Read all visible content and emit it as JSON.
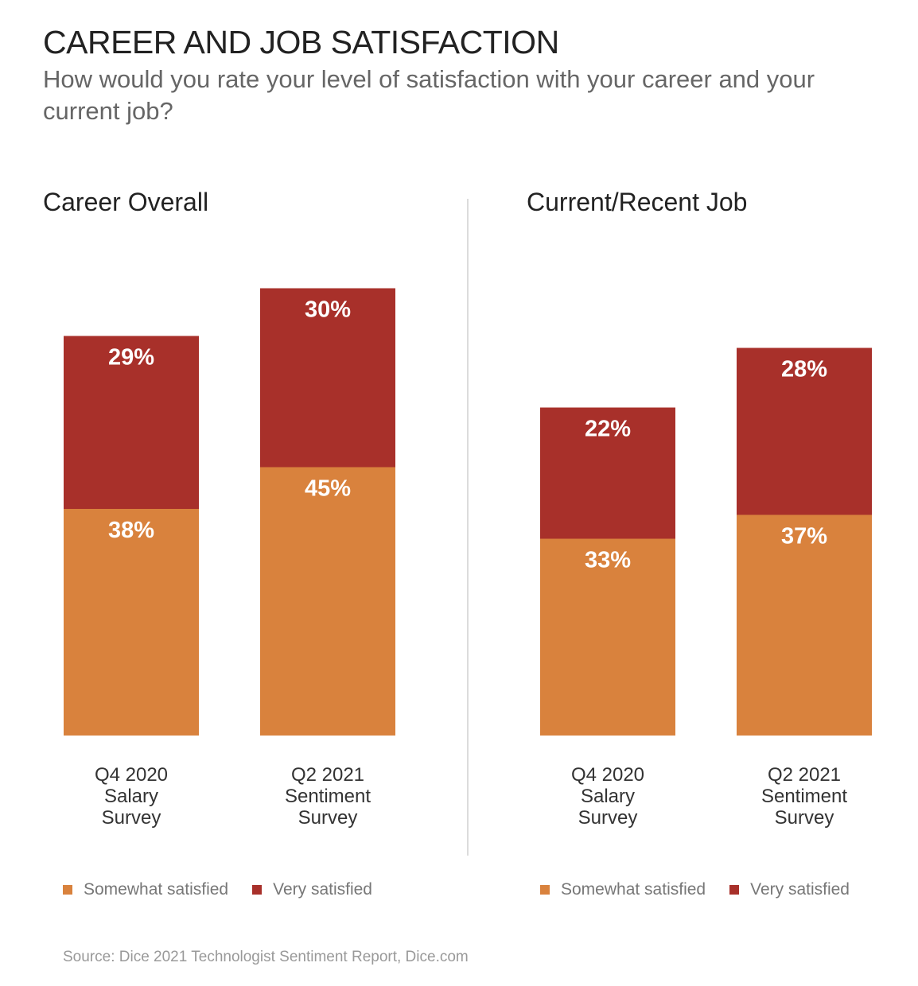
{
  "title": "CAREER AND JOB SATISFACTION",
  "subtitle": "How would you rate your level of satisfaction with your career and your current job?",
  "colors": {
    "somewhat": "#D9823D",
    "very": "#A8302A"
  },
  "chart_data": [
    {
      "type": "bar",
      "stacked": true,
      "title": "Career Overall",
      "categories": [
        "Q4 2020\nSalary\nSurvey",
        "Q2 2021\nSentiment\nSurvey"
      ],
      "series": [
        {
          "name": "Somewhat satisfied",
          "values": [
            38,
            45
          ]
        },
        {
          "name": "Very satisfied",
          "values": [
            29,
            30
          ]
        }
      ],
      "value_labels": [
        [
          "38%",
          "45%"
        ],
        [
          "29%",
          "30%"
        ]
      ],
      "ylim": [
        0,
        80
      ],
      "grid": false,
      "legend": "bottom"
    },
    {
      "type": "bar",
      "stacked": true,
      "title": "Current/Recent Job",
      "categories": [
        "Q4 2020\nSalary\nSurvey",
        "Q2 2021\nSentiment\nSurvey"
      ],
      "series": [
        {
          "name": "Somewhat satisfied",
          "values": [
            33,
            37
          ]
        },
        {
          "name": "Very satisfied",
          "values": [
            22,
            28
          ]
        }
      ],
      "value_labels": [
        [
          "33%",
          "37%"
        ],
        [
          "22%",
          "28%"
        ]
      ],
      "ylim": [
        0,
        80
      ],
      "grid": false,
      "legend": "bottom"
    }
  ],
  "source": "Source: Dice 2021 Technologist Sentiment Report, Dice.com"
}
